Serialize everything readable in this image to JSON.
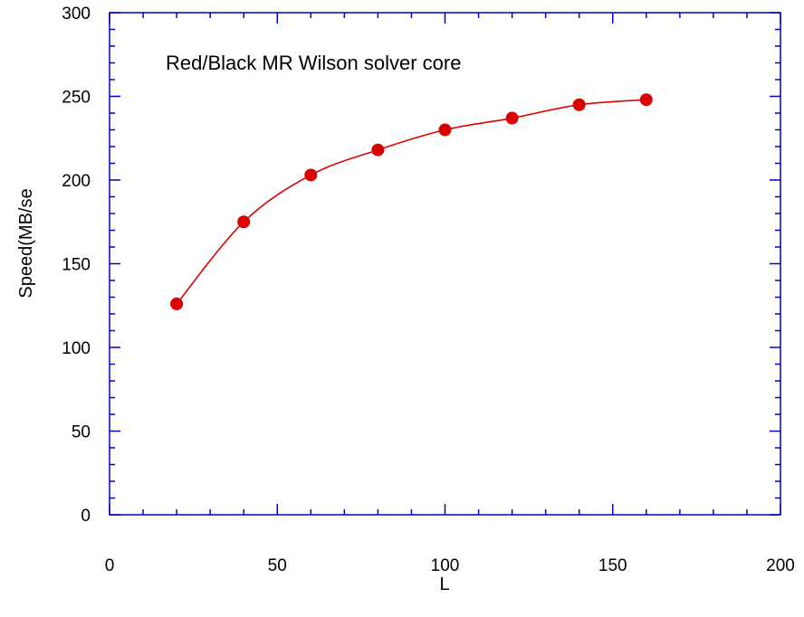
{
  "chart_data": {
    "type": "line",
    "annotation": "Red/Black MR Wilson solver core",
    "xlabel": "L",
    "ylabel": "Speed(MB/se",
    "xlim": [
      0,
      200
    ],
    "ylim": [
      0,
      300
    ],
    "xticks": [
      0,
      50,
      100,
      150,
      200
    ],
    "yticks": [
      0,
      50,
      100,
      150,
      200,
      250,
      300
    ],
    "x_minor_step": 10,
    "y_minor_step": 10,
    "grid": false,
    "series": [
      {
        "x": [
          20,
          40,
          60,
          80,
          100,
          120,
          140,
          160
        ],
        "values": [
          126,
          175,
          203,
          218,
          230,
          237,
          245,
          248
        ],
        "color": "#dd0000",
        "marker": "circle"
      }
    ],
    "axis_color": "#0000cc"
  }
}
